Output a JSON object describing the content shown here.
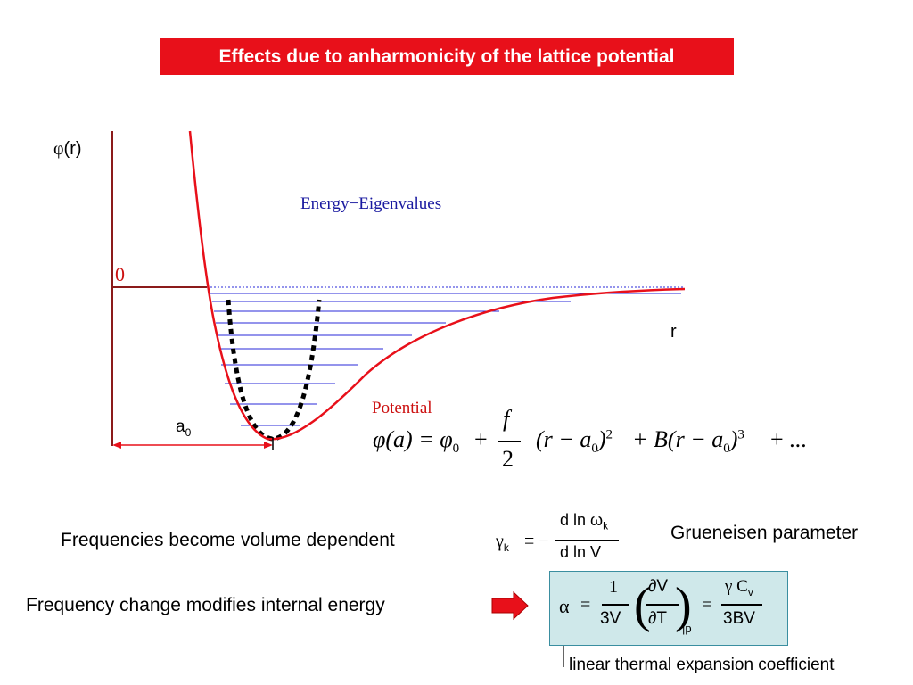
{
  "title": "Effects due to anharmonicity of the lattice potential",
  "diagram": {
    "y_axis_label_symbol": "φ",
    "y_axis_label_rest": "(r)",
    "zero_label": "0",
    "r_label": "r",
    "a0_label_main": "a",
    "a0_label_sub": "0",
    "eigen_label": "Energy−Eigenvalues",
    "potential_label": "Potential"
  },
  "equation": {
    "lhs": "φ(a) = φ",
    "phi0_sub": "0",
    "plus": "+",
    "f": "f",
    "two": "2",
    "rest_a": "(r − a",
    "rest_a_sub": "0",
    "rest_a_sup": ")",
    "rest_a_exp": "2",
    "rest_b": "+ B(r − a",
    "rest_b_sub": "0",
    "rest_b_sup": ")",
    "rest_b_exp": "3",
    "tail": "+ ..."
  },
  "statements": {
    "volume_dependent": "Frequencies become volume dependent",
    "internal_energy": "Frequency change modifies internal energy",
    "grueneisen": "Grueneisen parameter",
    "linear_expansion": "linear thermal expansion coefficient"
  },
  "gamma_formula": {
    "gamma": "γ",
    "k": "k",
    "equiv": "≡ −",
    "num": "d ln ω",
    "num_sub": "k",
    "den": "d ln V"
  },
  "alpha_formula": {
    "alpha": "α",
    "eq": "=",
    "one": "1",
    "threeV": "3V",
    "dV": "∂V",
    "dT": "∂T",
    "p": "|p",
    "eq2": "=",
    "gammaCv": "γ C",
    "v": "v",
    "threeBV": "3BV"
  },
  "colors": {
    "title_bg": "#e8101a",
    "curve": "#e8101a",
    "axis": "#8b1a1a",
    "levels": "#2a2ad8",
    "label_blue": "#1a1aa0",
    "label_red": "#cc1010",
    "box_bg": "#cfe8ea"
  }
}
